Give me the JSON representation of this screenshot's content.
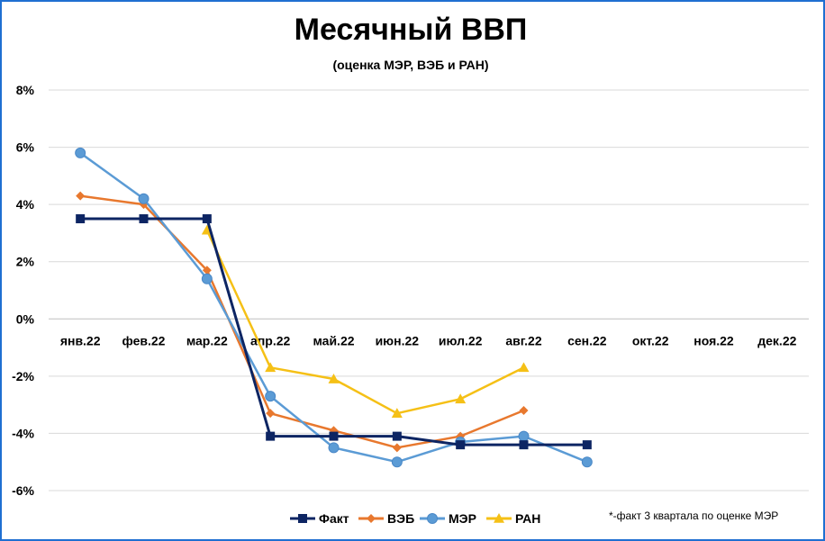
{
  "chart_data": {
    "type": "line",
    "title": "Месячный ВВП",
    "subtitle": "(оценка МЭР, ВЭБ и РАН)",
    "categories": [
      "янв.22",
      "фев.22",
      "мар.22",
      "апр.22",
      "май.22",
      "июн.22",
      "июл.22",
      "авг.22",
      "сен.22",
      "окт.22",
      "ноя.22",
      "дек.22"
    ],
    "y_ticks": [
      "8%",
      "6%",
      "4%",
      "2%",
      "0%",
      "-2%",
      "-4%",
      "-6%"
    ],
    "y_tick_values": [
      8,
      6,
      4,
      2,
      0,
      -2,
      -4,
      -6
    ],
    "ylim": [
      -6,
      8
    ],
    "grid": true,
    "legend_position": "bottom",
    "series": [
      {
        "name": "Факт",
        "color": "#0d2563",
        "marker": "square",
        "step": true,
        "values": [
          3.5,
          3.5,
          3.5,
          -4.1,
          -4.1,
          -4.1,
          -4.4,
          -4.4,
          -4.4,
          null,
          null,
          null
        ]
      },
      {
        "name": "ВЭБ",
        "color": "#e8782e",
        "marker": "diamond",
        "step": false,
        "values": [
          4.3,
          4.0,
          1.7,
          -3.3,
          -3.9,
          -4.5,
          -4.1,
          -3.2,
          null,
          null,
          null,
          null
        ]
      },
      {
        "name": "МЭР",
        "color": "#5b9bd5",
        "marker": "circle",
        "step": false,
        "values": [
          5.8,
          4.2,
          1.4,
          -2.7,
          -4.5,
          -5.0,
          -4.3,
          -4.1,
          -5.0,
          null,
          null,
          null
        ]
      },
      {
        "name": "РАН",
        "color": "#f5c016",
        "marker": "triangle",
        "step": false,
        "values": [
          null,
          null,
          3.1,
          -1.7,
          -2.1,
          -3.3,
          -2.8,
          -1.7,
          null,
          null,
          null,
          null
        ]
      }
    ],
    "annotation": "*-факт 3 квартала по оценке МЭР"
  }
}
